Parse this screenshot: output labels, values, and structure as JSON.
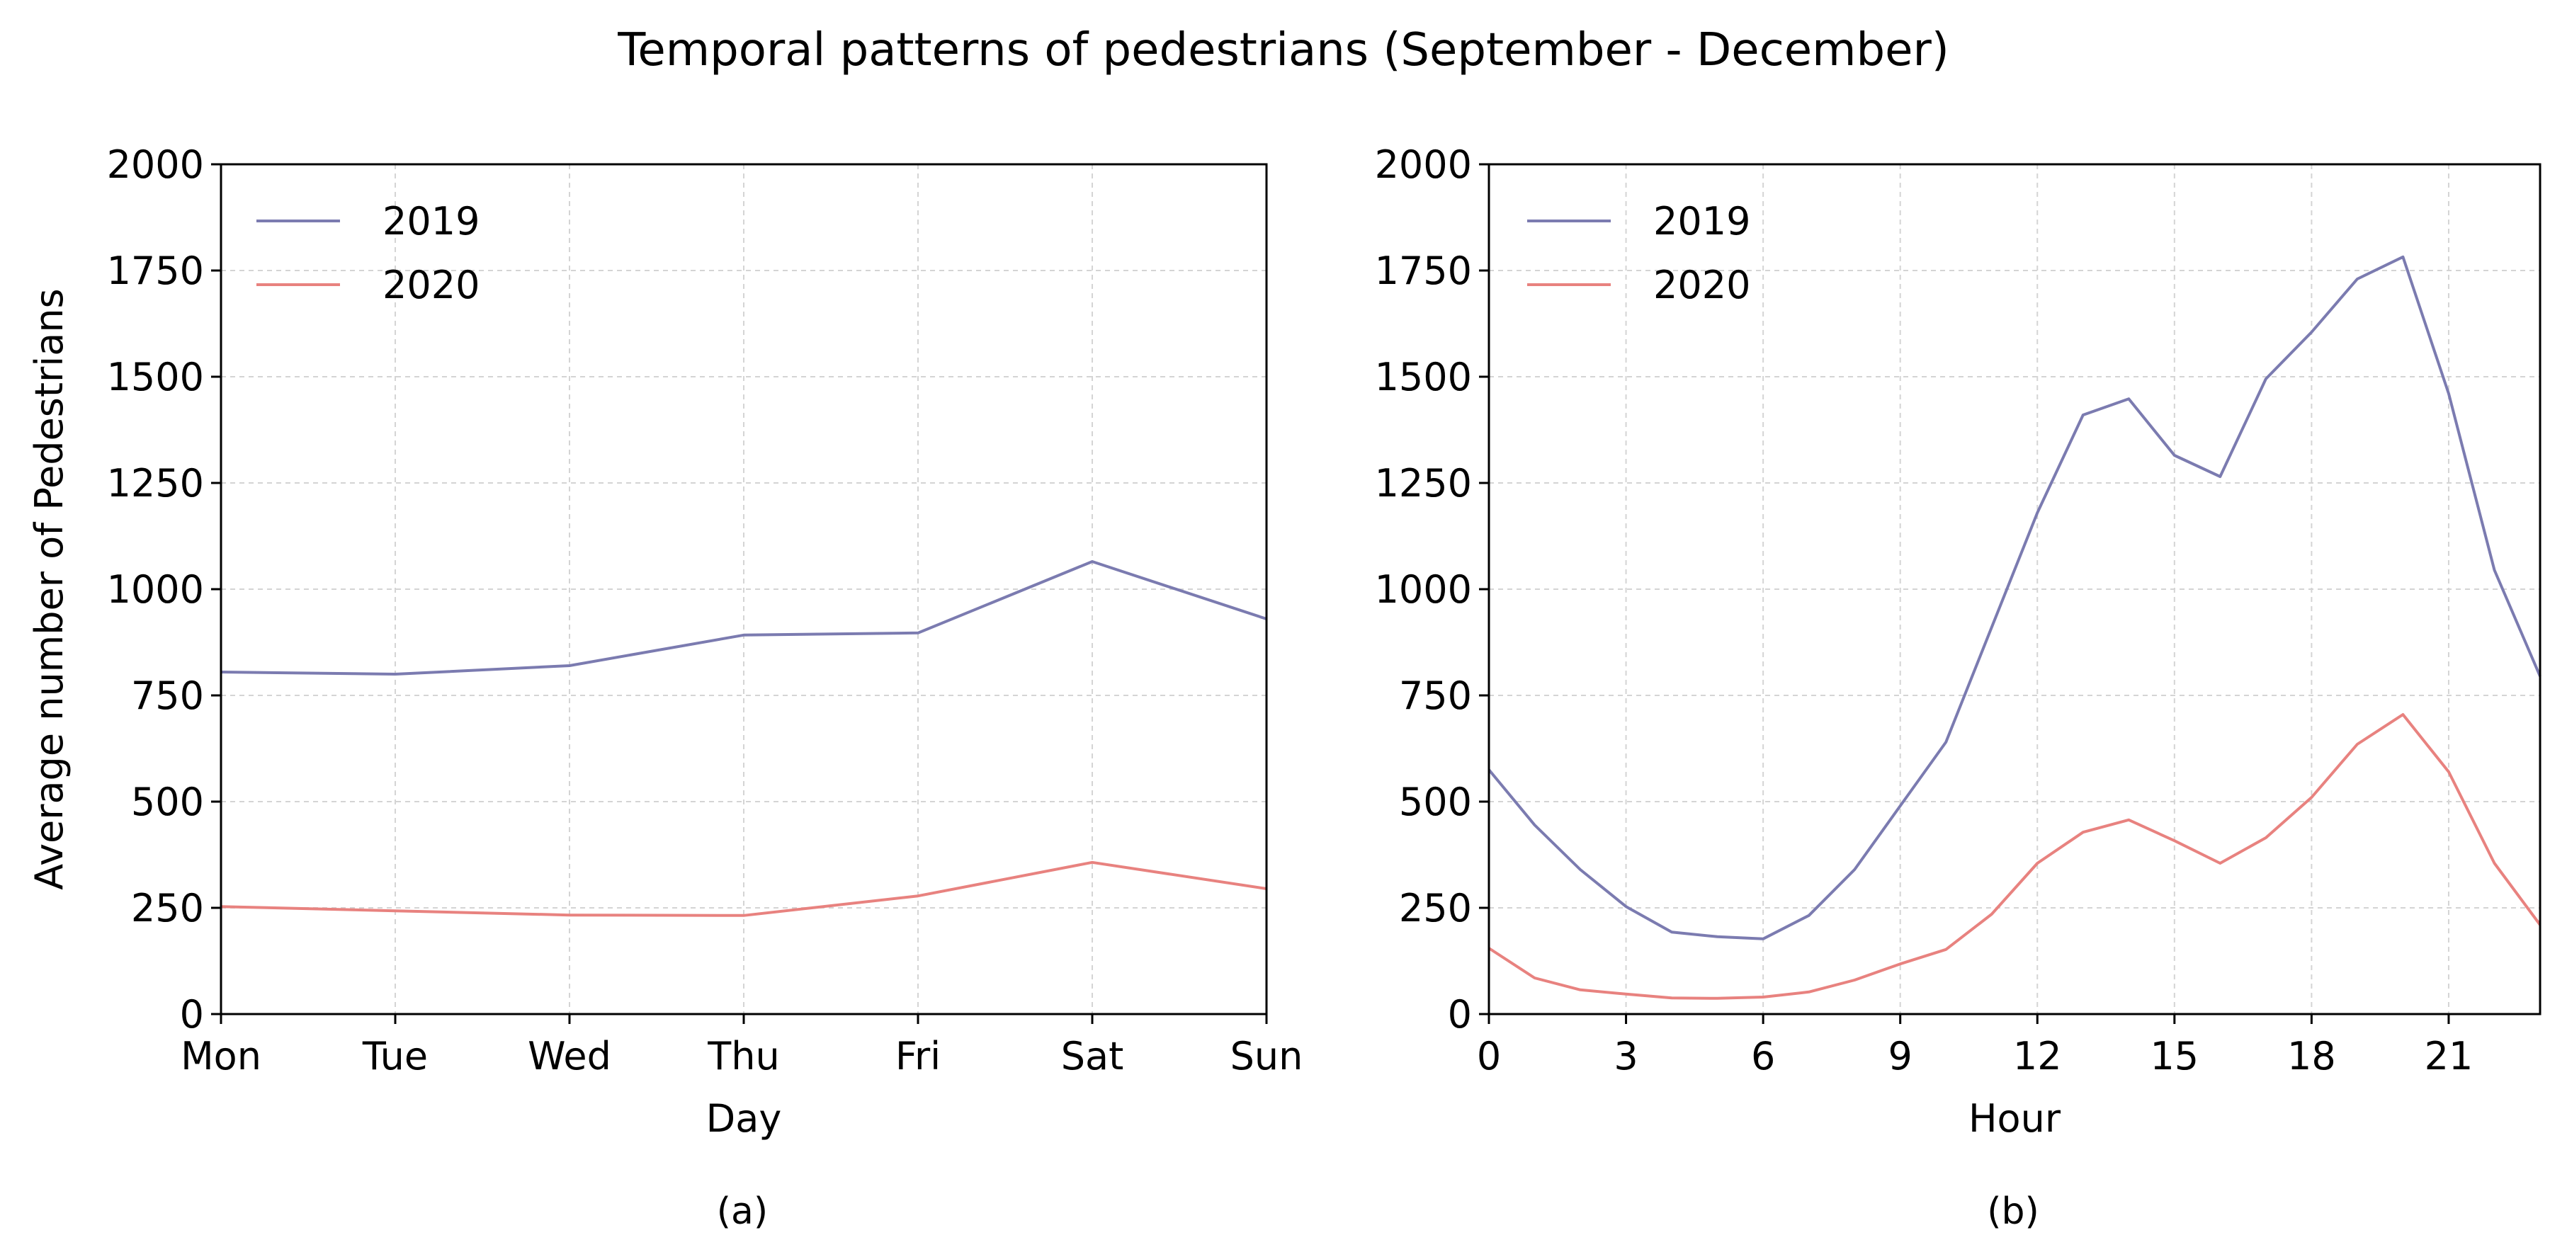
{
  "figure": {
    "title": "Temporal patterns of pedestrians (September - December)"
  },
  "colors": {
    "series_2019": "#7b7bb0",
    "series_2020": "#e8827f"
  },
  "chart_data": [
    {
      "type": "line",
      "panel": "a",
      "caption": "(a)",
      "title": "",
      "xlabel": "Day",
      "ylabel": "Average number of Pedestrians",
      "categories": [
        "Mon",
        "Tue",
        "Wed",
        "Thu",
        "Fri",
        "Sat",
        "Sun"
      ],
      "x": [
        0,
        1,
        2,
        3,
        4,
        5,
        6
      ],
      "xlim": [
        0,
        6
      ],
      "ylim": [
        0,
        2000
      ],
      "yticks": [
        0,
        250,
        500,
        750,
        1000,
        1250,
        1500,
        1750,
        2000
      ],
      "grid": true,
      "legend_position": "top-left",
      "series": [
        {
          "name": "2019",
          "values": [
            805,
            800,
            820,
            892,
            897,
            1065,
            930
          ]
        },
        {
          "name": "2020",
          "values": [
            253,
            243,
            233,
            232,
            278,
            357,
            295
          ]
        }
      ]
    },
    {
      "type": "line",
      "panel": "b",
      "caption": "(b)",
      "title": "",
      "xlabel": "Hour",
      "ylabel": "",
      "x": [
        0,
        1,
        2,
        3,
        4,
        5,
        6,
        7,
        8,
        9,
        10,
        11,
        12,
        13,
        14,
        15,
        16,
        17,
        18,
        19,
        20,
        21,
        22,
        23
      ],
      "xticks": [
        0,
        3,
        6,
        9,
        12,
        15,
        18,
        21
      ],
      "xlim": [
        0,
        23
      ],
      "ylim": [
        0,
        2000
      ],
      "yticks": [
        0,
        250,
        500,
        750,
        1000,
        1250,
        1500,
        1750,
        2000
      ],
      "grid": true,
      "legend_position": "top-left",
      "series": [
        {
          "name": "2019",
          "values": [
            575,
            445,
            340,
            253,
            193,
            182,
            177,
            232,
            340,
            490,
            640,
            910,
            1180,
            1410,
            1448,
            1315,
            1265,
            1495,
            1605,
            1730,
            1782,
            1460,
            1045,
            795
          ]
        },
        {
          "name": "2020",
          "values": [
            155,
            85,
            57,
            47,
            38,
            37,
            40,
            52,
            80,
            118,
            152,
            235,
            355,
            428,
            457,
            408,
            355,
            415,
            510,
            635,
            705,
            570,
            355,
            210
          ]
        }
      ]
    }
  ]
}
